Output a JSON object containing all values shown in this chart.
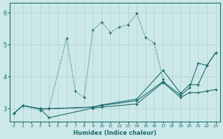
{
  "xlabel": "Humidex (Indice chaleur)",
  "bg_color": "#cce8e8",
  "grid_color": "#b8d8d8",
  "line_color": "#1a6b6b",
  "xlim": [
    -0.5,
    23.5
  ],
  "ylim": [
    2.6,
    6.3
  ],
  "yticks": [
    3,
    4,
    5,
    6
  ],
  "xticks": [
    0,
    1,
    2,
    3,
    4,
    5,
    6,
    7,
    8,
    9,
    10,
    11,
    12,
    13,
    14,
    15,
    16,
    17,
    18,
    19,
    20,
    21,
    22,
    23
  ],
  "series_dotted": {
    "x": [
      0,
      1,
      3,
      4,
      6,
      7,
      8,
      9,
      10,
      11,
      12,
      13,
      14,
      15,
      16,
      17
    ],
    "y": [
      2.85,
      3.1,
      2.95,
      3.0,
      5.2,
      3.55,
      3.35,
      5.45,
      5.7,
      5.38,
      5.55,
      5.62,
      5.97,
      5.22,
      5.05,
      3.92
    ]
  },
  "series_solid": [
    {
      "x": [
        0,
        1,
        3,
        4,
        9,
        10,
        14,
        17,
        19,
        20,
        21,
        22,
        23
      ],
      "y": [
        2.85,
        3.1,
        3.0,
        3.0,
        3.05,
        3.1,
        3.25,
        3.85,
        3.42,
        3.65,
        4.42,
        4.35,
        4.75
      ]
    },
    {
      "x": [
        0,
        1,
        3,
        4,
        9,
        10,
        14,
        17,
        19,
        20,
        21,
        22,
        23
      ],
      "y": [
        2.85,
        3.1,
        3.0,
        3.0,
        3.05,
        3.12,
        3.3,
        4.2,
        3.48,
        3.75,
        3.75,
        4.35,
        4.75
      ]
    },
    {
      "x": [
        3,
        4,
        9,
        10,
        14,
        17,
        19,
        20,
        21,
        22,
        23
      ],
      "y": [
        3.0,
        2.72,
        3.02,
        3.05,
        3.15,
        3.82,
        3.35,
        3.5,
        3.5,
        3.55,
        3.6
      ]
    }
  ]
}
